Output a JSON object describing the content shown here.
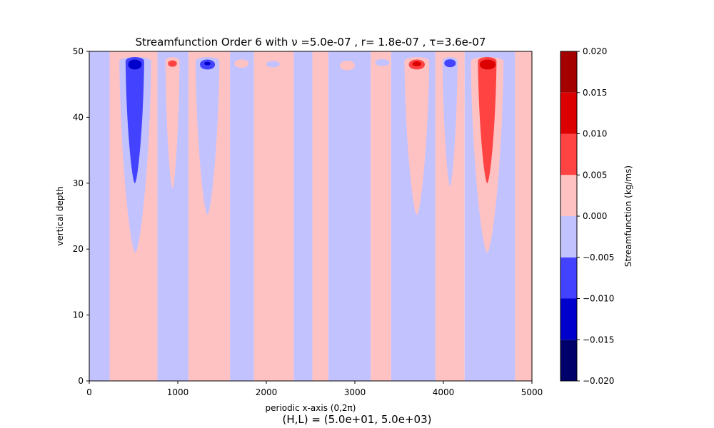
{
  "chart_data": {
    "type": "contourf",
    "title": "Streamfunction Order 6 with ν =5.0e-07 , r= 1.8e-07 , τ=3.6e-07",
    "xlabel": "periodic x-axis (0,2π)",
    "ylabel": "vertical depth",
    "footer": "(H,L) = (5.0e+01, 5.0e+03)",
    "xlim": [
      0,
      5000
    ],
    "ylim": [
      0,
      50
    ],
    "x_ticks": [
      "0",
      "1000",
      "2000",
      "3000",
      "4000",
      "5000"
    ],
    "y_ticks": [
      "0",
      "10",
      "20",
      "30",
      "40",
      "50"
    ],
    "colorbar": {
      "label": "Streamfunction (kg/ms)",
      "levels": [
        -0.02,
        -0.015,
        -0.01,
        -0.005,
        0.0,
        0.005,
        0.01,
        0.015,
        0.02
      ],
      "tick_labels": [
        "−0.020",
        "−0.015",
        "−0.010",
        "−0.005",
        "0.000",
        "0.005",
        "0.010",
        "0.015",
        "0.020"
      ],
      "colors": [
        "#00006a",
        "#0000cc",
        "#4343ff",
        "#c2c2ff",
        "#ffc2c2",
        "#ff4343",
        "#dd0000",
        "#a40000"
      ]
    },
    "background_bands": [
      {
        "x0": 0,
        "x1": 230,
        "sign": "positive"
      },
      {
        "x0": 230,
        "x1": 770,
        "sign": "negative"
      },
      {
        "x0": 770,
        "x1": 1120,
        "sign": "positive"
      },
      {
        "x0": 1120,
        "x1": 1590,
        "sign": "negative"
      },
      {
        "x0": 1590,
        "x1": 1860,
        "sign": "positive"
      },
      {
        "x0": 1860,
        "x1": 2310,
        "sign": "negative"
      },
      {
        "x0": 2310,
        "x1": 2520,
        "sign": "positive"
      },
      {
        "x0": 2520,
        "x1": 2700,
        "sign": "negative"
      },
      {
        "x0": 2700,
        "x1": 3180,
        "sign": "positive"
      },
      {
        "x0": 3180,
        "x1": 3410,
        "sign": "negative"
      },
      {
        "x0": 3410,
        "x1": 3910,
        "sign": "positive"
      },
      {
        "x0": 3910,
        "x1": 4240,
        "sign": "negative"
      },
      {
        "x0": 4240,
        "x1": 4810,
        "sign": "positive"
      },
      {
        "x0": 4810,
        "x1": 5000,
        "sign": "negative"
      }
    ],
    "cells": [
      {
        "x": 520,
        "sign": "negative",
        "peak": -0.02,
        "levels": [
          {
            "level": 1,
            "x0": 340,
            "x1": 700,
            "bottom": 19.5
          },
          {
            "level": 2,
            "x0": 410,
            "x1": 620,
            "bottom": 30
          },
          {
            "level": 3,
            "x0": 440,
            "x1": 590,
            "top": 49,
            "bottom": 47
          }
        ]
      },
      {
        "x": 940,
        "sign": "positive",
        "peak": 0.015,
        "levels": [
          {
            "level": 1,
            "x0": 860,
            "x1": 1020,
            "bottom": 29.2
          },
          {
            "level": 2,
            "x0": 890,
            "x1": 990,
            "top": 48.8,
            "bottom": 47.5
          }
        ]
      },
      {
        "x": 1330,
        "sign": "negative",
        "peak": -0.02,
        "levels": [
          {
            "level": 1,
            "x0": 1200,
            "x1": 1470,
            "bottom": 25.2
          },
          {
            "level": 2,
            "x0": 1250,
            "x1": 1420,
            "top": 49,
            "bottom": 47
          },
          {
            "level": 3,
            "x0": 1300,
            "x1": 1370,
            "top": 48.5,
            "bottom": 47.8
          }
        ]
      },
      {
        "x": 1720,
        "sign": "positive",
        "peak": 0.01,
        "levels": [
          {
            "level": 1,
            "x0": 1640,
            "x1": 1800,
            "top": 49,
            "bottom": 47.3
          }
        ]
      },
      {
        "x": 2080,
        "sign": "negative",
        "peak": -0.01,
        "levels": [
          {
            "level": 1,
            "x0": 2000,
            "x1": 2150,
            "top": 48.7,
            "bottom": 47.4
          }
        ]
      },
      {
        "x": 2910,
        "sign": "positive",
        "peak": 0.01,
        "levels": [
          {
            "level": 1,
            "x0": 2830,
            "x1": 3000,
            "top": 48.8,
            "bottom": 46.9
          }
        ]
      },
      {
        "x": 3310,
        "sign": "negative",
        "peak": -0.01,
        "levels": [
          {
            "level": 1,
            "x0": 3230,
            "x1": 3390,
            "top": 49,
            "bottom": 47.6
          }
        ]
      },
      {
        "x": 3700,
        "sign": "positive",
        "peak": 0.02,
        "levels": [
          {
            "level": 1,
            "x0": 3560,
            "x1": 3840,
            "bottom": 25.2
          },
          {
            "level": 2,
            "x0": 3610,
            "x1": 3790,
            "top": 49,
            "bottom": 47
          },
          {
            "level": 3,
            "x0": 3650,
            "x1": 3750,
            "top": 48.6,
            "bottom": 47.6
          }
        ]
      },
      {
        "x": 4080,
        "sign": "negative",
        "peak": -0.015,
        "levels": [
          {
            "level": 1,
            "x0": 3990,
            "x1": 4160,
            "bottom": 29.5
          },
          {
            "level": 2,
            "x0": 4010,
            "x1": 4140,
            "top": 49,
            "bottom": 47.4
          }
        ]
      },
      {
        "x": 4490,
        "sign": "positive",
        "peak": 0.02,
        "levels": [
          {
            "level": 1,
            "x0": 4310,
            "x1": 4680,
            "bottom": 19.5
          },
          {
            "level": 2,
            "x0": 4390,
            "x1": 4600,
            "bottom": 30
          },
          {
            "level": 3,
            "x0": 4410,
            "x1": 4590,
            "top": 49,
            "bottom": 47
          }
        ]
      }
    ]
  }
}
